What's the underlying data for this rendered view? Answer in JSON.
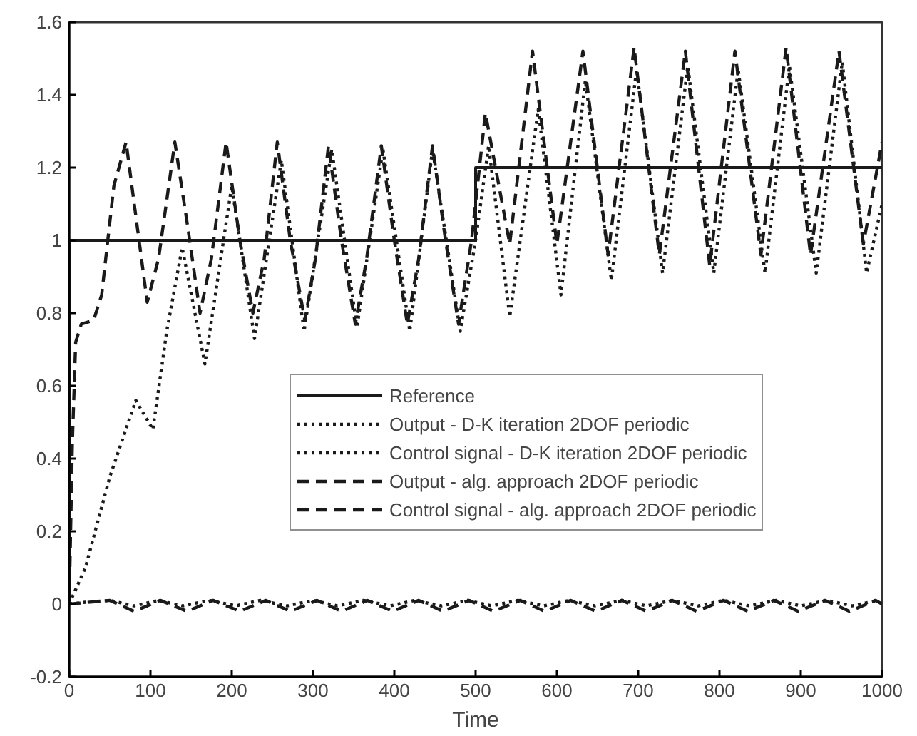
{
  "chart_data": {
    "type": "line",
    "xlabel": "Time",
    "xlim": [
      0,
      1000
    ],
    "ylim": [
      -0.2,
      1.6
    ],
    "xticks": [
      0,
      100,
      200,
      300,
      400,
      500,
      600,
      700,
      800,
      900,
      1000
    ],
    "yticks": [
      -0.2,
      0,
      0.2,
      0.4,
      0.6,
      0.8,
      1,
      1.2,
      1.4,
      1.6
    ],
    "grid": false,
    "legend": "bottom right",
    "series": [
      {
        "name": "Reference",
        "color": "#1a1a1a",
        "line_style": "solid",
        "x": [
          0,
          0,
          500,
          500,
          1000
        ],
        "values": [
          0,
          1,
          1,
          1.2,
          1.2
        ]
      },
      {
        "name": "Output - D-K iteration 2DOF periodic",
        "color": "#1a1a1a",
        "line_style": "dotted",
        "x": [
          0,
          20,
          50,
          82,
          103,
          120,
          139,
          167,
          200,
          228,
          261,
          289,
          323,
          354,
          386,
          419,
          447,
          481,
          500,
          516,
          542,
          577,
          605,
          635,
          667,
          698,
          730,
          761,
          793,
          823,
          856,
          886,
          919,
          951,
          981,
          1000
        ],
        "values": [
          0,
          0.1,
          0.35,
          0.56,
          0.48,
          0.75,
          0.98,
          0.66,
          1.15,
          0.73,
          1.22,
          0.75,
          1.25,
          0.76,
          1.25,
          0.75,
          1.25,
          0.75,
          1.0,
          1.26,
          0.79,
          1.36,
          0.85,
          1.44,
          0.89,
          1.47,
          0.91,
          1.48,
          0.91,
          1.47,
          0.91,
          1.48,
          0.91,
          1.49,
          0.91,
          1.1
        ]
      },
      {
        "name": "Control signal - D-K iteration 2DOF periodic",
        "color": "#1a1a1a",
        "line_style": "dotted",
        "x": [
          0,
          20,
          50,
          80,
          110,
          140,
          172,
          205,
          235,
          268,
          300,
          330,
          362,
          395,
          425,
          458,
          490,
          520,
          552,
          584,
          615,
          647,
          680,
          710,
          742,
          774,
          805,
          837,
          870,
          900,
          932,
          963,
          995
        ],
        "values": [
          0,
          0.005,
          0.01,
          -0.005,
          0.01,
          -0.005,
          0.01,
          -0.005,
          0.01,
          -0.005,
          0.01,
          -0.005,
          0.01,
          -0.005,
          0.01,
          -0.005,
          0.01,
          -0.005,
          0.01,
          -0.005,
          0.01,
          -0.005,
          0.01,
          -0.005,
          0.01,
          -0.005,
          0.01,
          -0.005,
          0.01,
          -0.005,
          0.01,
          -0.005,
          0.01
        ]
      },
      {
        "name": "Output - alg. approach 2DOF periodic",
        "color": "#1a1a1a",
        "line_style": "dashed",
        "x": [
          0,
          4,
          8,
          15,
          30,
          40,
          55,
          70,
          83,
          96,
          110,
          130,
          145,
          161,
          175,
          193,
          210,
          226,
          240,
          256,
          272,
          290,
          303,
          319,
          335,
          352,
          366,
          384,
          400,
          416,
          430,
          447,
          463,
          479,
          495,
          512,
          542,
          570,
          600,
          632,
          663,
          695,
          726,
          758,
          788,
          819,
          851,
          882,
          912,
          947,
          977,
          1000
        ],
        "values": [
          0,
          0.45,
          0.72,
          0.77,
          0.78,
          0.85,
          1.15,
          1.27,
          1.05,
          0.83,
          0.95,
          1.27,
          1.05,
          0.8,
          0.95,
          1.27,
          1.0,
          0.8,
          0.95,
          1.27,
          1.0,
          0.78,
          0.95,
          1.26,
          1.0,
          0.77,
          0.95,
          1.26,
          1.0,
          0.77,
          0.95,
          1.26,
          1.0,
          0.77,
          1.0,
          1.35,
          0.99,
          1.52,
          0.99,
          1.52,
          0.96,
          1.53,
          0.96,
          1.52,
          0.93,
          1.52,
          0.96,
          1.53,
          0.96,
          1.52,
          0.99,
          1.27
        ]
      },
      {
        "name": "Control signal - alg. approach 2DOF periodic",
        "color": "#1a1a1a",
        "line_style": "dashed",
        "x": [
          0,
          50,
          80,
          112,
          145,
          177,
          210,
          242,
          272,
          305,
          335,
          367,
          398,
          430,
          460,
          492,
          522,
          555,
          585,
          617,
          648,
          680,
          710,
          742,
          772,
          805,
          835,
          867,
          897,
          930,
          960,
          992,
          1000
        ],
        "values": [
          0,
          0.01,
          -0.02,
          0.01,
          -0.02,
          0.01,
          -0.02,
          0.01,
          -0.02,
          0.01,
          -0.02,
          0.01,
          -0.02,
          0.01,
          -0.02,
          0.01,
          -0.02,
          0.01,
          -0.02,
          0.01,
          -0.02,
          0.01,
          -0.02,
          0.01,
          -0.02,
          0.01,
          -0.02,
          0.01,
          -0.02,
          0.01,
          -0.02,
          0.01,
          0
        ]
      }
    ]
  }
}
